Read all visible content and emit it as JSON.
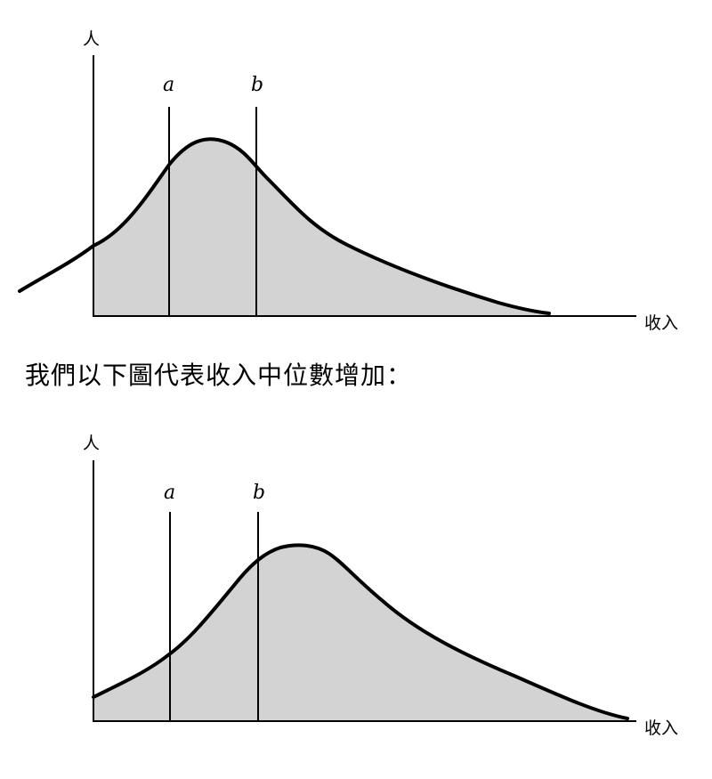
{
  "top_diagram": {
    "y_axis_label": "人",
    "x_axis_label": "收入",
    "line_a_label": "a",
    "line_b_label": "b"
  },
  "caption": "我們以下圖代表收入中位數增加：",
  "bottom_diagram": {
    "y_axis_label": "人",
    "x_axis_label": "收入",
    "line_a_label": "a",
    "line_b_label": "b"
  },
  "colors": {
    "fill": "#d3d3d3",
    "stroke": "#000000"
  }
}
